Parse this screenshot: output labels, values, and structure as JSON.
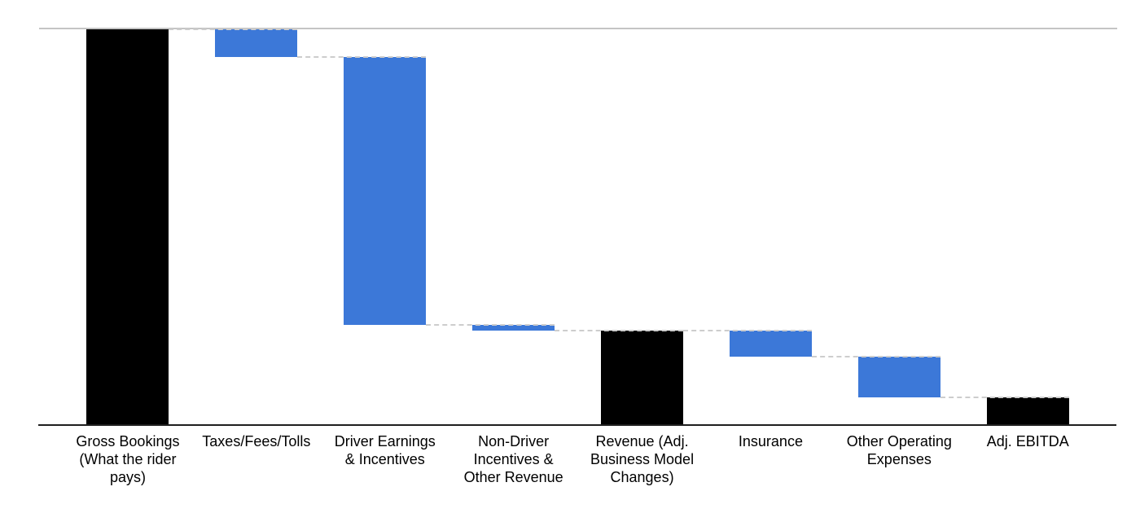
{
  "chart_data": {
    "type": "bar",
    "variant": "waterfall",
    "title": "",
    "xlabel": "",
    "ylabel": "",
    "legend": false,
    "grid": false,
    "background": "#ffffff",
    "ylim": [
      0,
      100
    ],
    "value_unit": "percent of Gross Bookings (estimated from bar heights; chart shows no numeric labels)",
    "categories": [
      "Gross Bookings (What the rider pays)",
      "Taxes/Fees/Tolls",
      "Driver Earnings & Incentives",
      "Non-Driver Incentives & Other Revenue",
      "Revenue (Adj. Business Model Changes)",
      "Insurance",
      "Other Operating Expenses",
      "Adj. EBITDA"
    ],
    "steps": [
      {
        "label": "Gross Bookings (What the rider pays)",
        "label_lines": [
          "Gross Bookings",
          "(What the rider",
          "pays)"
        ],
        "kind": "total",
        "start": 0,
        "end": 100,
        "delta": 100,
        "color": "#000000"
      },
      {
        "label": "Taxes/Fees/Tolls",
        "label_lines": [
          "Taxes/Fees/Tolls"
        ],
        "kind": "decrease",
        "start": 100,
        "end": 93,
        "delta": -7,
        "color": "#3c78d8"
      },
      {
        "label": "Driver Earnings & Incentives",
        "label_lines": [
          "Driver Earnings",
          "& Incentives"
        ],
        "kind": "decrease",
        "start": 93,
        "end": 25.3,
        "delta": -67.7,
        "color": "#3c78d8"
      },
      {
        "label": "Non-Driver Incentives & Other Revenue",
        "label_lines": [
          "Non-Driver",
          "Incentives &",
          "Other Revenue"
        ],
        "kind": "decrease",
        "start": 25.3,
        "end": 23.9,
        "delta": -1.4,
        "color": "#3c78d8"
      },
      {
        "label": "Revenue (Adj. Business Model Changes)",
        "label_lines": [
          "Revenue (Adj.",
          "Business Model",
          "Changes)"
        ],
        "kind": "subtotal",
        "start": 0,
        "end": 23.9,
        "delta": 23.9,
        "color": "#000000"
      },
      {
        "label": "Insurance",
        "label_lines": [
          "Insurance"
        ],
        "kind": "decrease",
        "start": 23.9,
        "end": 17.3,
        "delta": -6.6,
        "color": "#3c78d8"
      },
      {
        "label": "Other Operating Expenses",
        "label_lines": [
          "Other Operating",
          "Expenses"
        ],
        "kind": "decrease",
        "start": 17.3,
        "end": 7,
        "delta": -10.3,
        "color": "#3c78d8"
      },
      {
        "label": "Adj. EBITDA",
        "label_lines": [
          "Adj. EBITDA"
        ],
        "kind": "total",
        "start": 0,
        "end": 7,
        "delta": 7,
        "color": "#000000"
      }
    ],
    "colors": {
      "total_bar": "#000000",
      "change_bar": "#3c78d8",
      "connector": "#cdcdcd",
      "top_gridline": "#c4c4c4",
      "axis_line": "#1f1f1f",
      "label_text": "#000000"
    },
    "connector_style": "dashed"
  }
}
